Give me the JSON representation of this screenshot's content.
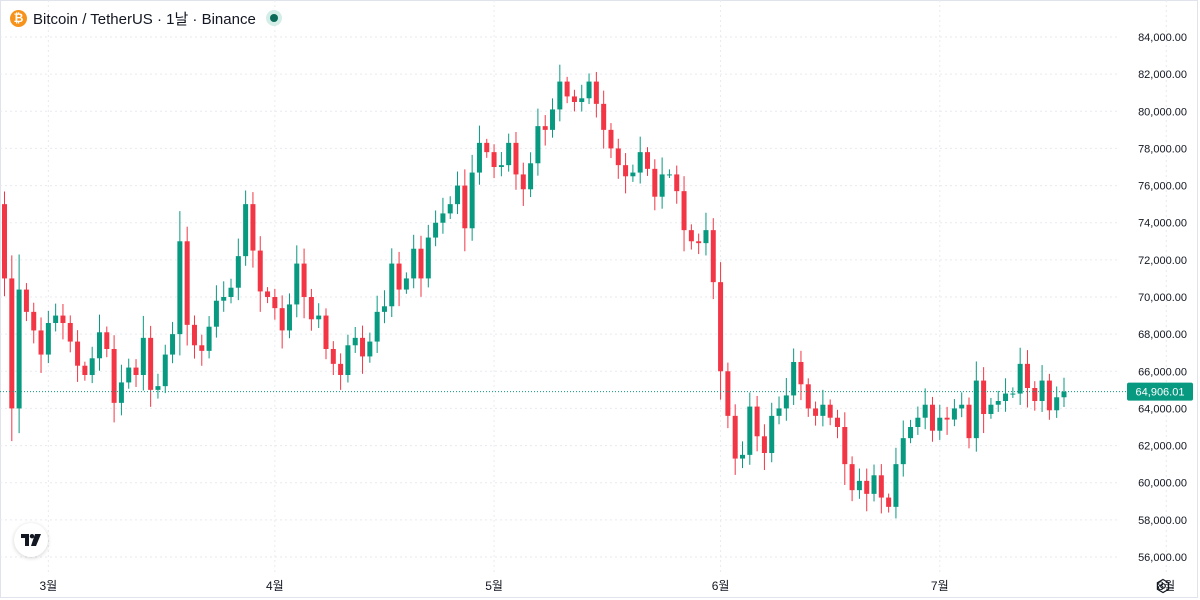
{
  "header": {
    "title": "Bitcoin / TetherUS · 1날 · Binance",
    "icon": "bitcoin-icon",
    "icon_glyph": "₿",
    "status_icon": "market-open-dot-icon"
  },
  "colors": {
    "up": "#089981",
    "down": "#f23645",
    "grid": "#e8eaef",
    "bitcoin": "#f7931a",
    "price_label_bg": "#089981",
    "status_dot": "#0b6b58"
  },
  "footer": {
    "logo_icon": "tradingview-logo-icon",
    "settings_icon": "gear-icon"
  },
  "chart_data": {
    "type": "candlestick",
    "y_ticks": [
      "84,000.00",
      "82,000.00",
      "80,000.00",
      "78,000.00",
      "76,000.00",
      "74,000.00",
      "72,000.00",
      "70,000.00",
      "68,000.00",
      "66,000.00",
      "64,000.00",
      "62,000.00",
      "60,000.00",
      "58,000.00",
      "56,000.00"
    ],
    "x_ticks": [
      "3월",
      "4월",
      "5월",
      "6월",
      "7월",
      "8월"
    ],
    "ylim": [
      55000,
      85500
    ],
    "grid": true,
    "last_price": 64906.01,
    "last_price_label": "64,906.01",
    "start_close": 75000,
    "closes": [
      71000,
      64000,
      70400,
      69200,
      68200,
      66900,
      68600,
      69000,
      68600,
      67600,
      66300,
      65800,
      66700,
      68100,
      67200,
      64300,
      65400,
      66200,
      65800,
      67800,
      65000,
      65200,
      66900,
      68000,
      73000,
      68500,
      67400,
      67100,
      68400,
      69800,
      70000,
      70500,
      72200,
      75000,
      72500,
      70300,
      70000,
      69400,
      68200,
      69600,
      71800,
      70000,
      68800,
      69000,
      67200,
      66400,
      65800,
      67400,
      67800,
      66800,
      67600,
      69200,
      69500,
      71800,
      70400,
      71000,
      72600,
      71000,
      73200,
      74000,
      74500,
      75000,
      76000,
      73700,
      76700,
      78300,
      77800,
      77000,
      77100,
      78300,
      76600,
      75800,
      77200,
      79200,
      79000,
      80100,
      81600,
      80800,
      80500,
      80700,
      81600,
      80400,
      79000,
      78000,
      77100,
      76500,
      76700,
      77800,
      76900,
      75400,
      76600,
      76600,
      75700,
      73600,
      73000,
      72900,
      73600,
      70800,
      66000,
      63600,
      61300,
      61500,
      64100,
      62500,
      61600,
      63600,
      64000,
      64700,
      66500,
      65300,
      64000,
      63600,
      64200,
      63500,
      63000,
      61000,
      59600,
      60100,
      59400,
      60400,
      59200,
      58700,
      61000,
      62400,
      63000,
      63500,
      64200,
      62800,
      63500,
      63400,
      64000,
      64200,
      62400,
      65500,
      63700,
      64200,
      64400,
      64800,
      64800,
      66400,
      65100,
      64400,
      65500,
      63900,
      64600,
      64906.01
    ],
    "start_date": "2024-02-24",
    "end_date": "2024-07-29"
  }
}
